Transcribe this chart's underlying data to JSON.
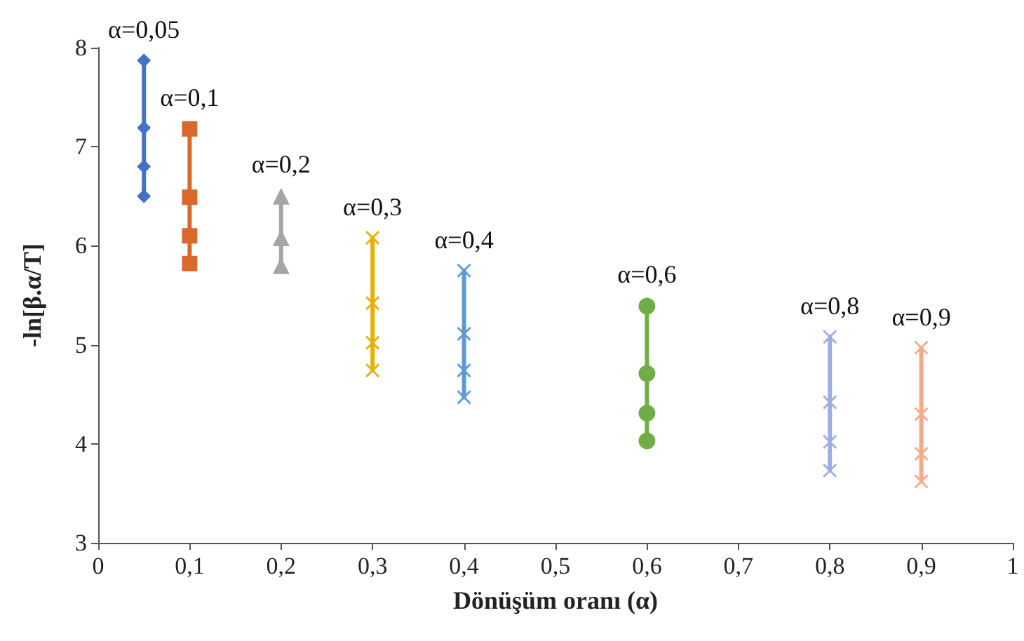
{
  "chart_data": {
    "type": "line",
    "xlabel": "Dönüşüm oranı (α)",
    "ylabel": "-ln[β.α/T]",
    "xlim": [
      0,
      1
    ],
    "xticks": [
      0,
      {
        "value": 0.1,
        "label": "0,1"
      },
      {
        "value": 0.2,
        "label": "0,2"
      },
      {
        "value": 0.3,
        "label": "0,3"
      },
      {
        "value": 0.4,
        "label": "0,4"
      },
      {
        "value": 0.5,
        "label": "0,5"
      },
      {
        "value": 0.6,
        "label": "0,6"
      },
      {
        "value": 0.7,
        "label": "0,7"
      },
      {
        "value": 0.8,
        "label": "0,8"
      },
      {
        "value": 0.9,
        "label": "0,9"
      },
      1
    ],
    "ylim": [
      3,
      8
    ],
    "yticks": [
      3,
      4,
      5,
      6,
      7,
      8
    ],
    "grid": false,
    "legend": false,
    "line_style": "solid",
    "series": [
      {
        "name": "α=0,05",
        "color": "#4472c4",
        "marker": "diamond",
        "x": [
          0.05,
          0.05,
          0.05,
          0.05
        ],
        "values": [
          7.87,
          7.19,
          6.8,
          6.5
        ]
      },
      {
        "name": "α=0,1",
        "color": "#d9692a",
        "marker": "square",
        "x": [
          0.1,
          0.1,
          0.1,
          0.1
        ],
        "values": [
          7.18,
          6.49,
          6.1,
          5.82
        ]
      },
      {
        "name": "α=0,2",
        "color": "#a5a5a5",
        "marker": "triangle",
        "x": [
          0.2,
          0.2,
          0.2
        ],
        "values": [
          6.5,
          6.08,
          5.8
        ]
      },
      {
        "name": "α=0,3",
        "color": "#e8b000",
        "marker": "cross",
        "x": [
          0.3,
          0.3,
          0.3,
          0.3
        ],
        "values": [
          6.08,
          5.42,
          5.02,
          4.74
        ]
      },
      {
        "name": "α=0,4",
        "color": "#5b9bd5",
        "marker": "cross",
        "x": [
          0.4,
          0.4,
          0.4,
          0.4
        ],
        "values": [
          5.75,
          5.11,
          4.74,
          4.47
        ]
      },
      {
        "name": "α=0,6",
        "color": "#70ad47",
        "marker": "circle",
        "x": [
          0.6,
          0.6,
          0.6,
          0.6
        ],
        "values": [
          5.39,
          4.71,
          4.31,
          4.03
        ]
      },
      {
        "name": "α=0,8",
        "color": "#9dafe0",
        "marker": "cross",
        "x": [
          0.8,
          0.8,
          0.8,
          0.8
        ],
        "values": [
          5.08,
          4.42,
          4.02,
          3.73
        ]
      },
      {
        "name": "α=0,9",
        "color": "#f4a98a",
        "marker": "cross",
        "x": [
          0.9,
          0.9,
          0.9,
          0.9
        ],
        "values": [
          4.97,
          4.3,
          3.9,
          3.62
        ]
      }
    ]
  }
}
